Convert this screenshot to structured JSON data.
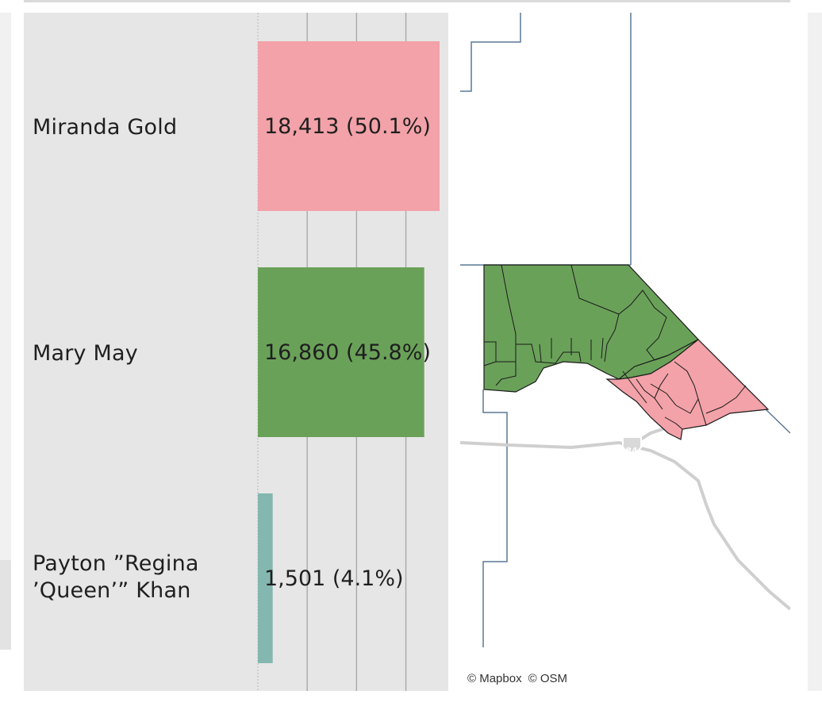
{
  "chart_data": {
    "type": "bar",
    "orientation": "horizontal",
    "categories": [
      "Miranda Gold",
      "Mary May",
      "Payton \"Regina 'Queen'\" Khan"
    ],
    "values": [
      18413,
      16860,
      1501
    ],
    "data_labels": [
      "18,413 (50.1%)",
      "16,860 (45.8%)",
      "1,501 (4.1%)"
    ],
    "colors": [
      "#f2a2a8",
      "#6aa159",
      "#83b7b0"
    ],
    "xlim": [
      0,
      20000
    ],
    "grid": true
  },
  "candidates": {
    "c1": "Miranda Gold",
    "c2": "Mary May",
    "c3_line1": "Payton ”Regina",
    "c3_line2": "’Queen’” Khan"
  },
  "map": {
    "highway_shield": "84",
    "attribution_mapbox": "© Mapbox",
    "attribution_osm": "© OSM",
    "colors": {
      "winner_gold": "#f2a2a8",
      "winner_may": "#6aa159"
    }
  }
}
